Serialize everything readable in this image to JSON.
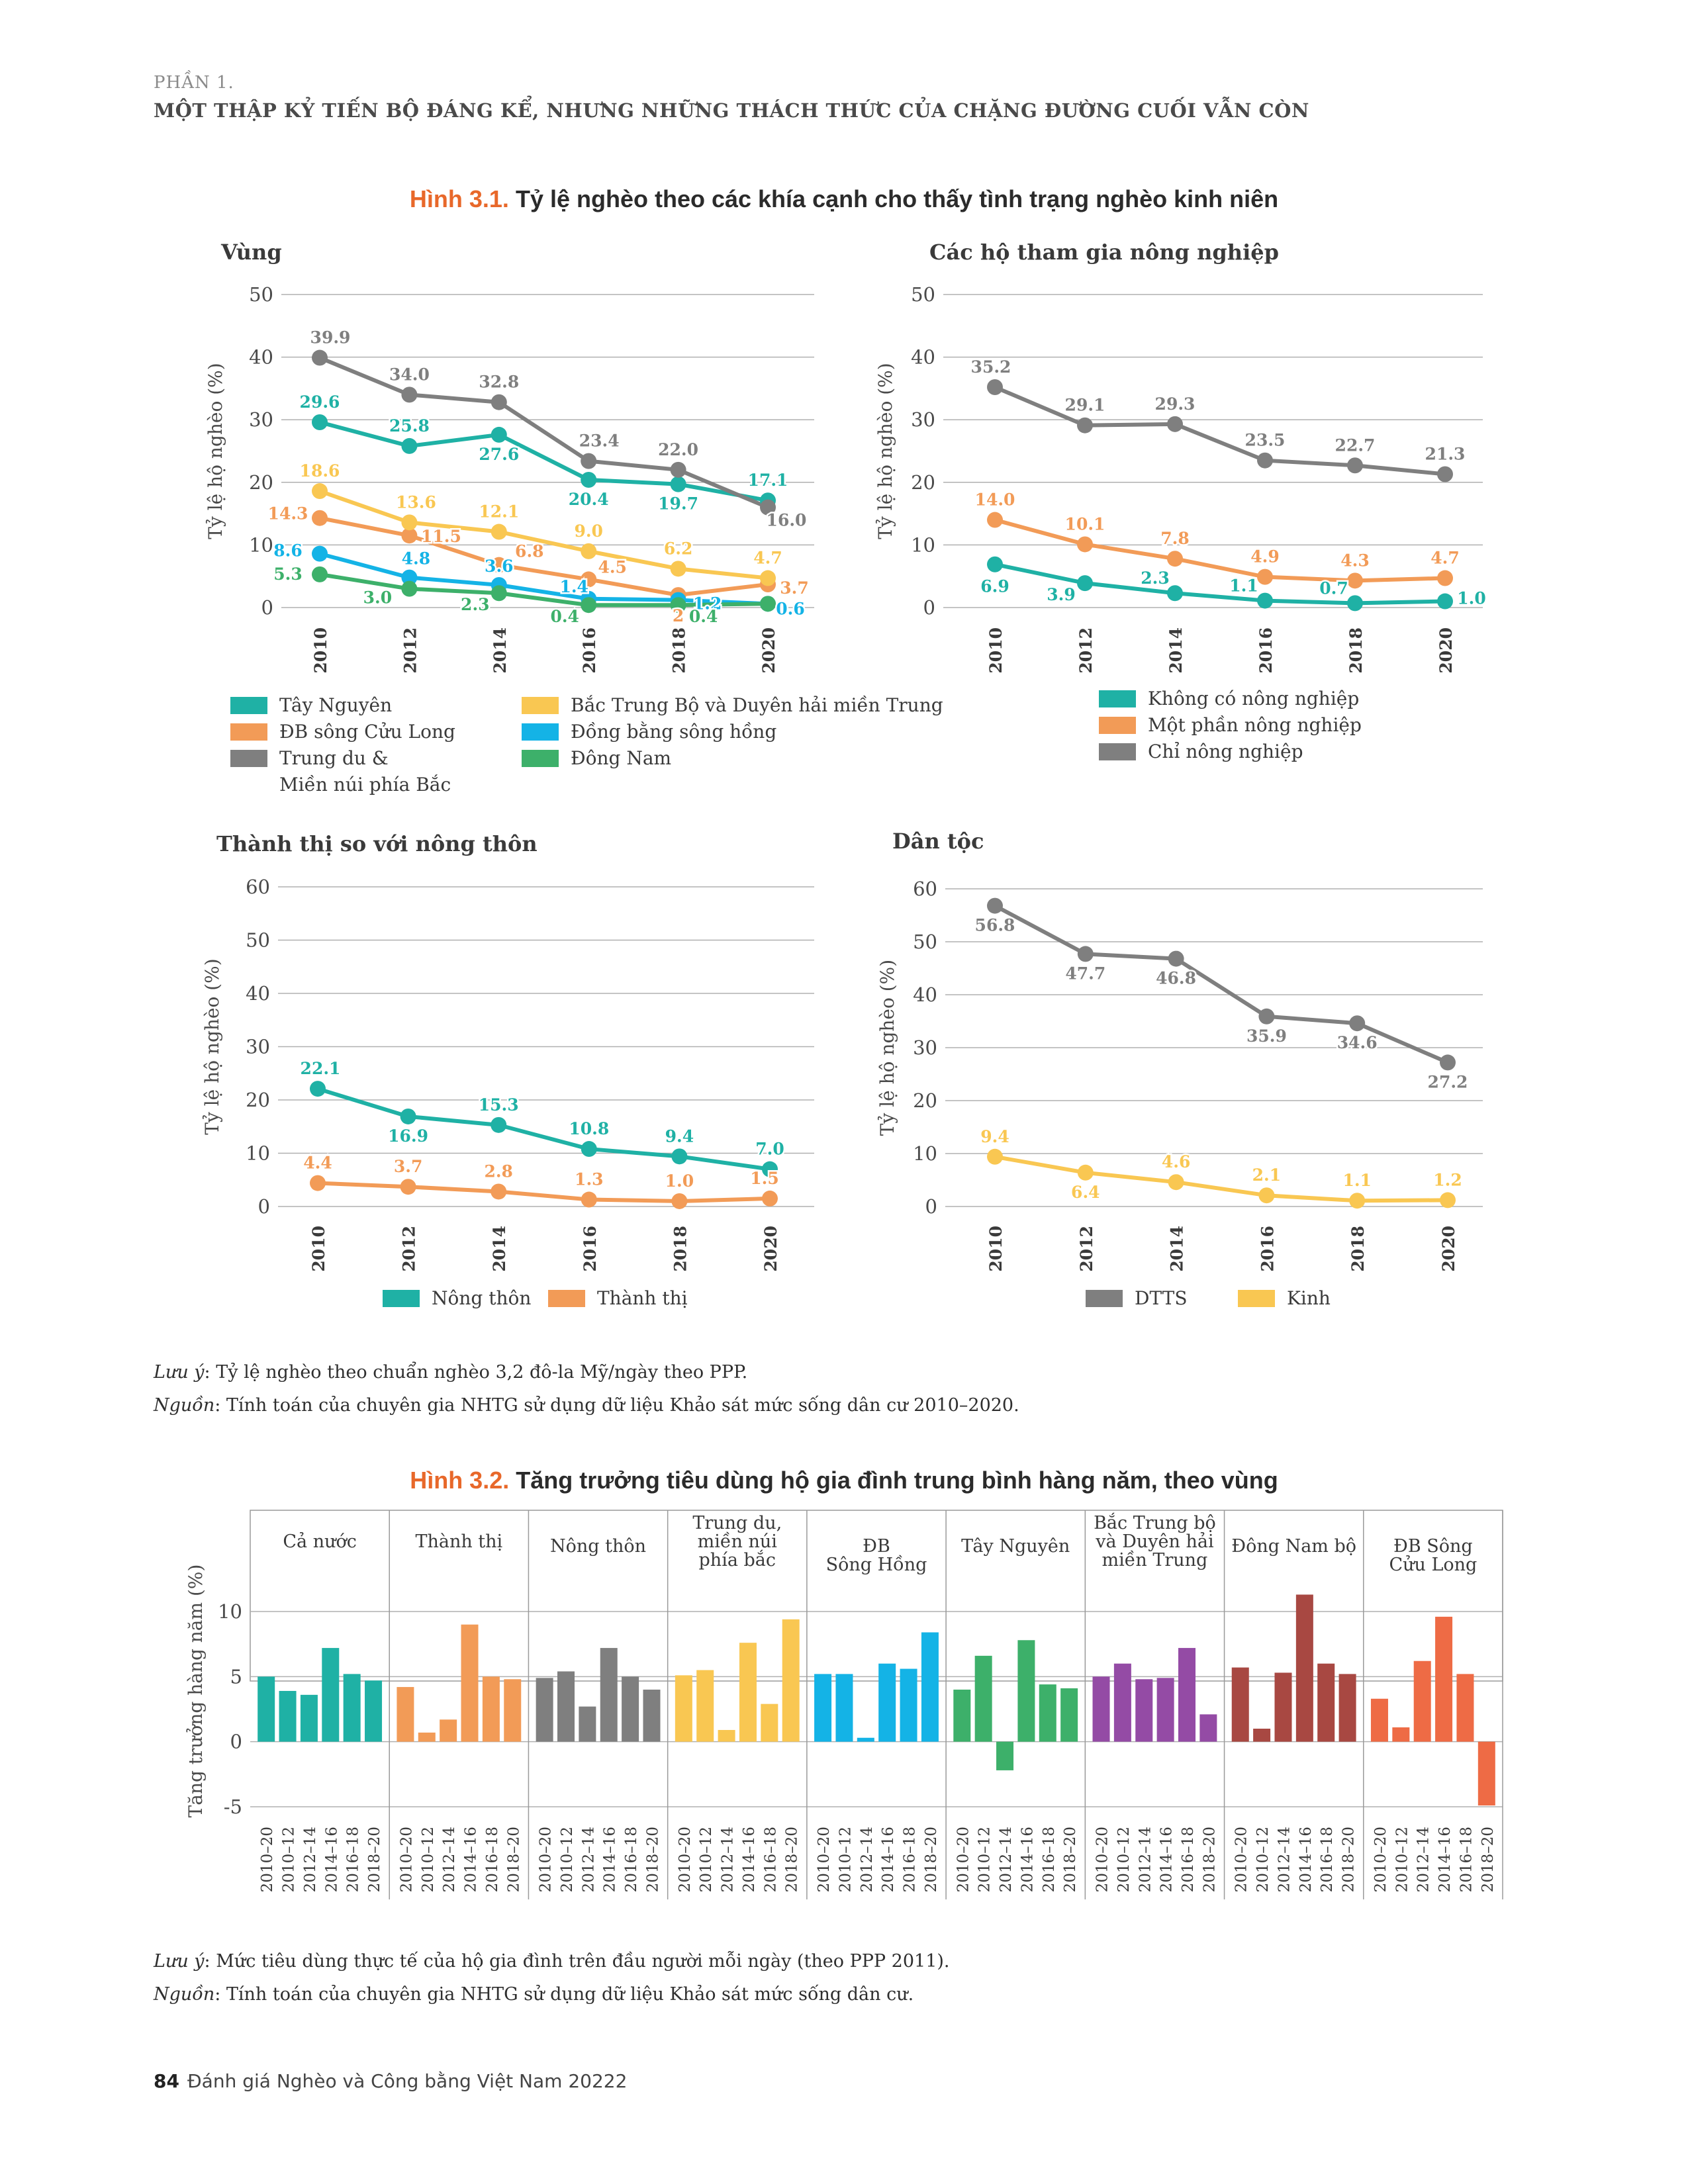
{
  "header": {
    "part": "PHẦN 1.",
    "title": "MỘT THẬP KỶ TIẾN BỘ ĐÁNG KỂ, NHƯNG NHỮNG THÁCH THỨC CỦA CHẶNG ĐƯỜNG CUỐI VẪN CÒN"
  },
  "figure1": {
    "number": "Hình 3.1.",
    "title": "Tỷ lệ nghèo theo các khía cạnh cho thấy tình trạng nghèo kinh niên",
    "note_label": "Lưu ý",
    "note_text": ": Tỷ lệ nghèo theo chuẩn nghèo 3,2 đô-la Mỹ/ngày theo PPP.",
    "source_label": "Nguồn",
    "source_text": ": Tính toán của chuyên gia NHTG sử dụng dữ liệu Khảo sát mức sống dân cư 2010–2020."
  },
  "figure2": {
    "number": "Hình 3.2.",
    "title": "Tăng trưởng tiêu dùng hộ gia đình trung bình hàng năm, theo vùng",
    "note_label": "Lưu ý",
    "note_text": ": Mức tiêu dùng thực tế của hộ gia đình trên đầu người mỗi ngày (theo PPP 2011).",
    "source_label": "Nguồn",
    "source_text": ": Tính toán của chuyên gia NHTG sử dụng dữ liệu Khảo sát mức sống dân cư."
  },
  "footer": {
    "page": "84",
    "text": "Đánh giá Nghèo và Công bằng Việt Nam 20222"
  },
  "chart_data": [
    {
      "id": "region",
      "type": "line",
      "title": "Vùng",
      "ylabel": "Tỷ lệ hộ nghèo (%)",
      "ylim": [
        0,
        50
      ],
      "yticks": [
        0,
        10,
        20,
        30,
        40,
        50
      ],
      "x": [
        "2010",
        "2012",
        "2014",
        "2016",
        "2018",
        "2020"
      ],
      "legend_cols": 2,
      "series": [
        {
          "name": "Tây Nguyên",
          "color": "#1fb1a5",
          "values": [
            29.6,
            25.8,
            27.6,
            20.4,
            19.7,
            17.1
          ]
        },
        {
          "name": "ĐB sông Cửu Long",
          "color": "#f29b57",
          "values": [
            14.3,
            11.5,
            6.8,
            4.5,
            2,
            3.7
          ]
        },
        {
          "name": "Trung du & Miền núi phía Bắc",
          "color": "#7f7f7f",
          "values": [
            39.9,
            34.0,
            32.8,
            23.4,
            22.0,
            16.0
          ]
        },
        {
          "name": "Bắc Trung Bộ và Duyên hải miền Trung",
          "color": "#f9c752",
          "values": [
            18.6,
            13.6,
            12.1,
            9.0,
            6.2,
            4.7
          ]
        },
        {
          "name": "Đồng bằng sông hồng",
          "color": "#14b3e6",
          "values": [
            8.6,
            4.8,
            3.6,
            1.4,
            1.2,
            0.6
          ]
        },
        {
          "name": "Đông Nam",
          "color": "#3db06a",
          "values": [
            5.3,
            3.0,
            2.3,
            0.4,
            0.4,
            0.6
          ]
        }
      ],
      "value_labels": [
        {
          "series": 0,
          "labels": [
            "29.6",
            "25.8",
            "27.6",
            "20.4",
            "19.7",
            "17.1"
          ]
        },
        {
          "series": 1,
          "labels": [
            "14.3",
            "11.5",
            "6.8",
            "4.5",
            "2",
            "3.7"
          ]
        },
        {
          "series": 2,
          "labels": [
            "39.9",
            "34.0",
            "32.8",
            "23.4",
            "22.0",
            "16.0"
          ]
        },
        {
          "series": 3,
          "labels": [
            "18.6",
            "13.6",
            "12.1",
            "9.0",
            "6.2",
            "4.7"
          ]
        },
        {
          "series": 4,
          "labels": [
            "8.6",
            "4.8",
            "3.6",
            "1.4",
            "1.2",
            "0.6"
          ]
        },
        {
          "series": 5,
          "labels": [
            "5.3",
            "3.0",
            "2.3",
            "0.4",
            "0.4",
            ""
          ]
        }
      ]
    },
    {
      "id": "agri",
      "type": "line",
      "title": "Các hộ tham gia nông nghiệp",
      "ylabel": "Tỷ lệ hộ nghèo (%)",
      "ylim": [
        0,
        50
      ],
      "yticks": [
        0,
        10,
        20,
        30,
        40,
        50
      ],
      "x": [
        "2010",
        "2012",
        "2014",
        "2016",
        "2018",
        "2020"
      ],
      "legend_cols": 1,
      "series": [
        {
          "name": "Không có nông nghiệp",
          "color": "#1fb1a5",
          "values": [
            6.9,
            3.9,
            2.3,
            1.1,
            0.7,
            1.0
          ]
        },
        {
          "name": "Một phần nông nghiệp",
          "color": "#f29b57",
          "values": [
            14.0,
            10.1,
            7.8,
            4.9,
            4.3,
            4.7
          ]
        },
        {
          "name": "Chỉ nông nghiệp",
          "color": "#7f7f7f",
          "values": [
            35.2,
            29.1,
            29.3,
            23.5,
            22.7,
            21.3
          ]
        }
      ],
      "value_labels": [
        {
          "series": 0,
          "labels": [
            "6.9",
            "3.9",
            "2.3",
            "1.1",
            "0.7",
            "1.0"
          ]
        },
        {
          "series": 1,
          "labels": [
            "14.0",
            "10.1",
            "7.8",
            "4.9",
            "4.3",
            "4.7"
          ]
        },
        {
          "series": 2,
          "labels": [
            "35.2",
            "29.1",
            "29.3",
            "23.5",
            "22.7",
            "21.3"
          ]
        }
      ]
    },
    {
      "id": "urban",
      "type": "line",
      "title": "Thành thị so với nông thôn",
      "ylabel": "Tỷ lệ hộ nghèo (%)",
      "ylim": [
        0,
        60
      ],
      "yticks": [
        0,
        10,
        20,
        30,
        40,
        50,
        60
      ],
      "x": [
        "2010",
        "2012",
        "2014",
        "2016",
        "2018",
        "2020"
      ],
      "legend_cols": 2,
      "series": [
        {
          "name": "Nông thôn",
          "color": "#1fb1a5",
          "values": [
            22.1,
            16.9,
            15.3,
            10.8,
            9.4,
            7.0
          ]
        },
        {
          "name": "Thành thị",
          "color": "#f29b57",
          "values": [
            4.4,
            3.7,
            2.8,
            1.3,
            1.0,
            1.5
          ]
        }
      ],
      "value_labels": [
        {
          "series": 0,
          "labels": [
            "22.1",
            "16.9",
            "15.3",
            "10.8",
            "9.4",
            "7.0"
          ]
        },
        {
          "series": 1,
          "labels": [
            "4.4",
            "3.7",
            "2.8",
            "1.3",
            "1.0",
            "1.5"
          ]
        }
      ]
    },
    {
      "id": "ethnic",
      "type": "line",
      "title": "Dân tộc",
      "ylabel": "Tỷ lệ hộ nghèo (%)",
      "ylim": [
        0,
        60
      ],
      "yticks": [
        0,
        10,
        20,
        30,
        40,
        50,
        60
      ],
      "x": [
        "2010",
        "2012",
        "2014",
        "2016",
        "2018",
        "2020"
      ],
      "legend_cols": 2,
      "series": [
        {
          "name": "DTTS",
          "color": "#7f7f7f",
          "values": [
            56.8,
            47.7,
            46.8,
            35.9,
            34.6,
            27.2
          ]
        },
        {
          "name": "Kinh",
          "color": "#f9c752",
          "values": [
            9.4,
            6.4,
            4.6,
            2.1,
            1.1,
            1.2
          ]
        }
      ],
      "value_labels": [
        {
          "series": 0,
          "labels": [
            "56.8",
            "47.7",
            "46.8",
            "35.9",
            "34.6",
            "27.2"
          ]
        },
        {
          "series": 1,
          "labels": [
            "9.4",
            "6.4",
            "4.6",
            "2.1",
            "1.1",
            "1.2"
          ]
        }
      ]
    },
    {
      "id": "consumption",
      "type": "bar",
      "title": "",
      "ylabel": "Tăng trưởng hàng năm (%)",
      "ylim": [
        -5,
        12
      ],
      "yticks": [
        -5,
        0,
        5,
        10
      ],
      "periods": [
        "2010–20",
        "2010–12",
        "2012–14",
        "2014–16",
        "2016–18",
        "2018–20"
      ],
      "groups": [
        {
          "name": "Cả nước",
          "color": "#1fb1a5",
          "values": [
            5.0,
            3.9,
            3.6,
            7.2,
            5.2,
            4.7
          ]
        },
        {
          "name": "Thành thị",
          "color": "#f29b57",
          "values": [
            4.2,
            0.7,
            1.7,
            9.0,
            5.0,
            4.8
          ]
        },
        {
          "name": "Nông thôn",
          "color": "#7f7f7f",
          "values": [
            4.9,
            5.4,
            2.7,
            7.2,
            5.0,
            4.0
          ]
        },
        {
          "name": "Trung du, miền núi phía bắc",
          "color": "#f9c752",
          "values": [
            5.1,
            5.5,
            0.9,
            7.6,
            2.9,
            9.4
          ]
        },
        {
          "name": "ĐB Sông Hồng",
          "color": "#14b3e6",
          "values": [
            5.2,
            5.2,
            0.3,
            6.0,
            5.6,
            8.4
          ]
        },
        {
          "name": "Tây Nguyên",
          "color": "#3db06a",
          "values": [
            4.0,
            6.6,
            -2.2,
            7.8,
            4.4,
            4.1
          ]
        },
        {
          "name": "Bắc Trung bộ và Duyên hải miền Trung",
          "color": "#944ba5",
          "values": [
            5.0,
            6.0,
            4.8,
            4.9,
            7.2,
            2.1
          ]
        },
        {
          "name": "Đông Nam bộ",
          "color": "#a84842",
          "values": [
            5.7,
            1.0,
            5.3,
            11.3,
            6.0,
            5.2
          ]
        },
        {
          "name": "ĐB Sông Cửu Long",
          "color": "#ee6b45",
          "values": [
            3.3,
            1.1,
            6.2,
            9.6,
            5.2,
            -4.9
          ]
        }
      ]
    }
  ]
}
